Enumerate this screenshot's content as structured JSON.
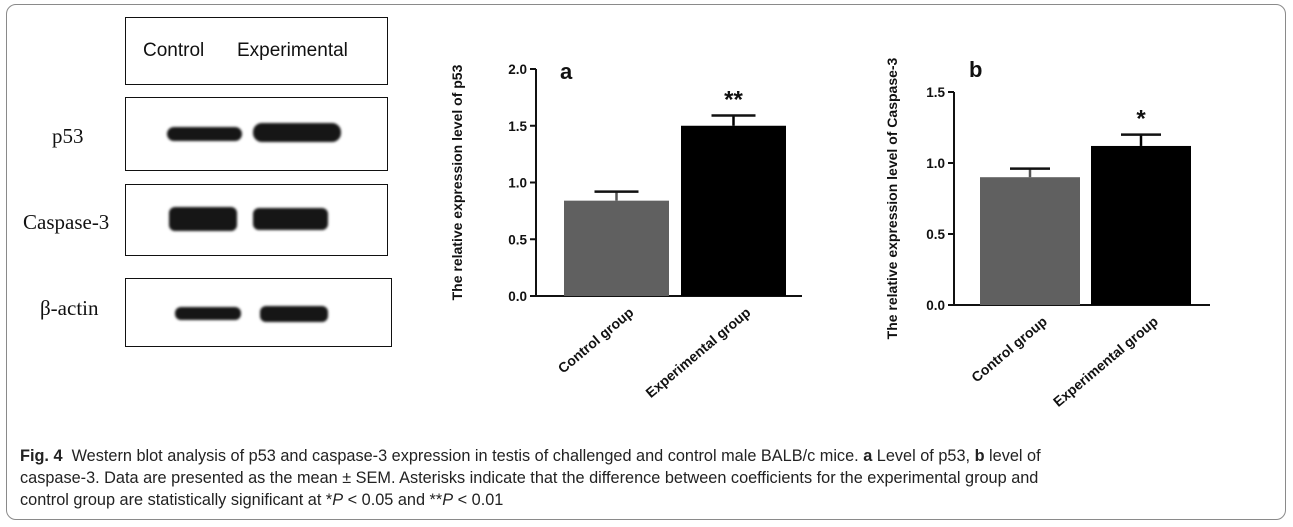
{
  "western_blot": {
    "header": {
      "control": "Control",
      "experimental": "Experimental"
    },
    "rows": [
      {
        "label": "p53"
      },
      {
        "label": "Caspase-3"
      },
      {
        "label": "β-actin"
      }
    ]
  },
  "chart_data": [
    {
      "type": "bar",
      "panel_label": "a",
      "categories": [
        "Control group",
        "Experimental group"
      ],
      "values": [
        0.84,
        1.5
      ],
      "errors": [
        0.08,
        0.09
      ],
      "significance": [
        "",
        "**"
      ],
      "bar_colors": [
        "#606060",
        "#000000"
      ],
      "ylabel": "The relative expression level of p53",
      "ylim": [
        0,
        2.0
      ],
      "yticks": [
        "0.0",
        "0.5",
        "1.0",
        "1.5",
        "2.0"
      ],
      "grid": false
    },
    {
      "type": "bar",
      "panel_label": "b",
      "categories": [
        "Control group",
        "Experimental group"
      ],
      "values": [
        0.9,
        1.12
      ],
      "errors": [
        0.06,
        0.08
      ],
      "significance": [
        "",
        "*"
      ],
      "bar_colors": [
        "#606060",
        "#000000"
      ],
      "ylabel": "The relative expression level of Caspase-3",
      "ylim": [
        0,
        1.5
      ],
      "yticks": [
        "0.0",
        "0.5",
        "1.0",
        "1.5"
      ],
      "grid": false
    }
  ],
  "caption": {
    "fig_label": "Fig. 4",
    "line1": "Western blot analysis of p53 and caspase-3 expression in testis of challenged and control male BALB/c mice.",
    "label_a": "a",
    "text_a": "Level of p53,",
    "label_b": "b",
    "text_b": "level of",
    "line2": "caspase-3. Data are presented as the mean ± SEM. Asterisks indicate that the difference between coefficients for the experimental group and",
    "line3_pre": "control group are statistically significant at *",
    "p1": "P",
    "line3_mid": " < 0.05 and **",
    "p2": "P",
    "line3_post": " < 0.01"
  }
}
